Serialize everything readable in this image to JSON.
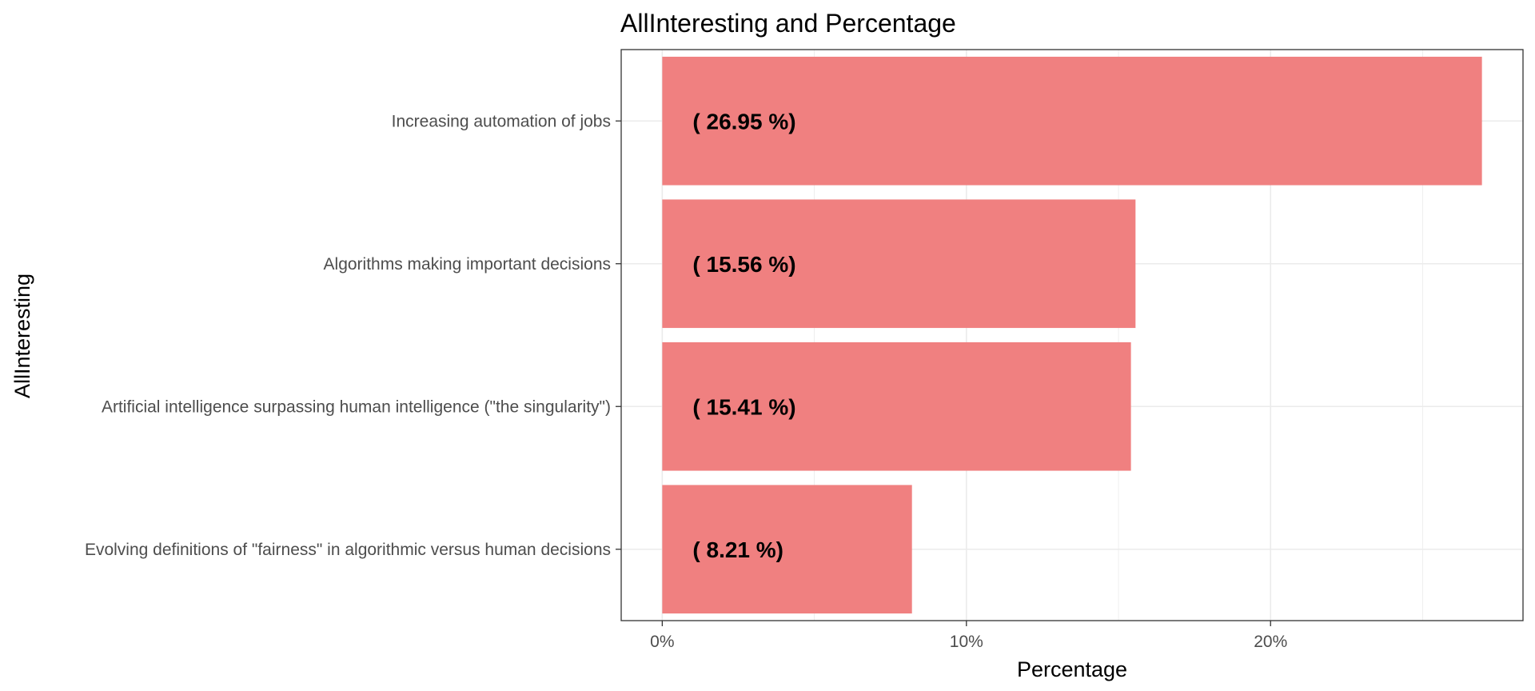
{
  "chart_data": {
    "type": "bar",
    "orientation": "horizontal",
    "title": "AllInteresting and Percentage",
    "xlabel": "Percentage",
    "ylabel": "AllInteresting",
    "categories": [
      "Increasing automation of jobs",
      "Algorithms making important decisions",
      "Artificial intelligence surpassing human intelligence (\"the singularity\")",
      "Evolving definitions of \"fairness\" in algorithmic versus human decisions"
    ],
    "values": [
      26.95,
      15.56,
      15.41,
      8.21
    ],
    "data_labels": [
      "( 26.95 %)",
      "( 15.56 %)",
      "( 15.41 %)",
      "( 8.21 %)"
    ],
    "x_ticks": [
      0,
      10,
      20
    ],
    "x_tick_labels": [
      "0%",
      "10%",
      "20%"
    ],
    "xlim": [
      -1.35,
      28.3
    ],
    "grid": true,
    "legend": "none",
    "bar_color": "#f08080",
    "grid_color": "#ebebeb",
    "panel_border_color": "#333333"
  }
}
